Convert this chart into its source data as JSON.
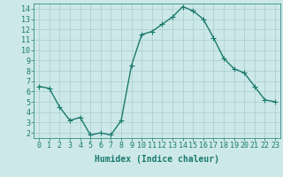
{
  "x": [
    0,
    1,
    2,
    3,
    4,
    5,
    6,
    7,
    8,
    9,
    10,
    11,
    12,
    13,
    14,
    15,
    16,
    17,
    18,
    19,
    20,
    21,
    22,
    23
  ],
  "y": [
    6.5,
    6.3,
    4.5,
    3.2,
    3.5,
    1.8,
    2.0,
    1.8,
    3.2,
    8.5,
    11.5,
    11.8,
    12.5,
    13.2,
    14.2,
    13.8,
    13.0,
    11.2,
    9.2,
    8.2,
    7.8,
    6.5,
    5.2,
    5.0
  ],
  "line_color": "#1a7a6e",
  "marker": "+",
  "marker_size": 4,
  "bg_color": "#cce8e8",
  "grid_color": "#aacece",
  "xlabel": "Humidex (Indice chaleur)",
  "ylim": [
    1.5,
    14.5
  ],
  "xlim": [
    -0.5,
    23.5
  ],
  "yticks": [
    2,
    3,
    4,
    5,
    6,
    7,
    8,
    9,
    10,
    11,
    12,
    13,
    14
  ],
  "xticks": [
    0,
    1,
    2,
    3,
    4,
    5,
    6,
    7,
    8,
    9,
    10,
    11,
    12,
    13,
    14,
    15,
    16,
    17,
    18,
    19,
    20,
    21,
    22,
    23
  ],
  "line_color_dark": "#1a7a6e",
  "tick_label_color": "#1a7a6e",
  "xlabel_color": "#1a7a6e",
  "xlabel_fontsize": 7,
  "tick_fontsize": 6,
  "linewidth": 1.0,
  "markeredgewidth": 0.8
}
